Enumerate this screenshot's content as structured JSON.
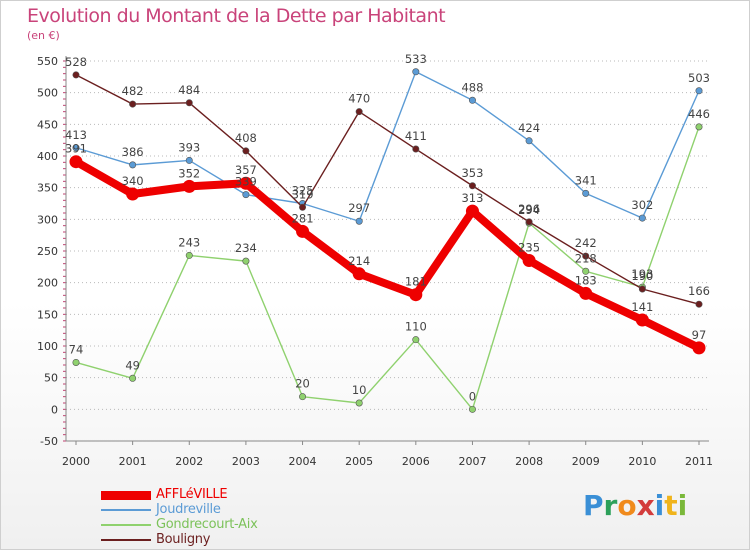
{
  "chart_data": {
    "type": "line",
    "title": "Evolution du Montant de la Dette par Habitant",
    "subtitle": "(en €)",
    "x": [
      "2000",
      "2001",
      "2002",
      "2003",
      "2004",
      "2005",
      "2006",
      "2007",
      "2008",
      "2009",
      "2010",
      "2011"
    ],
    "ylim": [
      -50,
      550
    ],
    "yticks": [
      -50,
      0,
      50,
      100,
      150,
      200,
      250,
      300,
      350,
      400,
      450,
      500,
      550
    ],
    "grid": "horizontal dotted",
    "legend_position": "bottom-left",
    "series": [
      {
        "name": "AFFLéVILLE",
        "color": "#ee0000",
        "values": [
          391,
          340,
          352,
          357,
          281,
          214,
          181,
          313,
          235,
          183,
          141,
          97
        ]
      },
      {
        "name": "Joudreville",
        "color": "#5b9bd5",
        "values": [
          413,
          386,
          393,
          339,
          325,
          297,
          533,
          488,
          424,
          341,
          302,
          503
        ]
      },
      {
        "name": "Gondrecourt-Aix",
        "color": "#8fd16e",
        "values": [
          74,
          49,
          243,
          234,
          20,
          10,
          110,
          0,
          294,
          218,
          193,
          446
        ]
      },
      {
        "name": "Bouligny",
        "color": "#6b1f1f",
        "values": [
          528,
          482,
          484,
          408,
          319,
          470,
          411,
          353,
          296,
          242,
          190,
          166
        ]
      }
    ]
  },
  "logo": {
    "text": "Proxiti"
  }
}
